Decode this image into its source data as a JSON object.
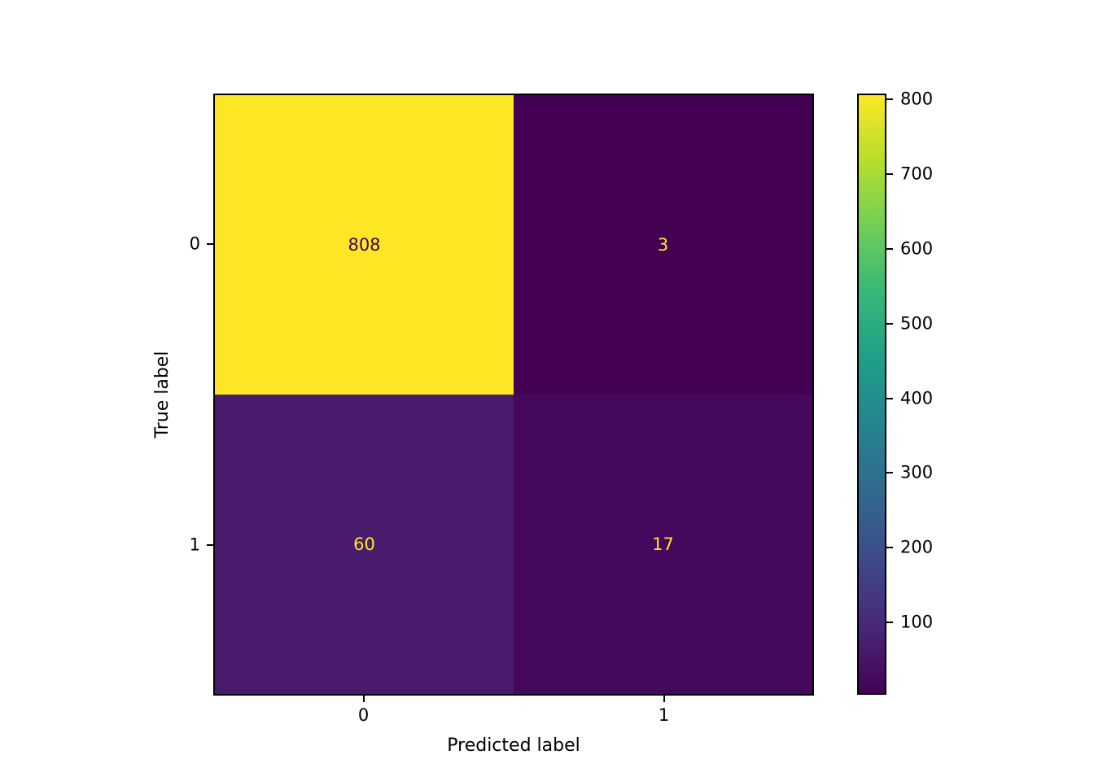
{
  "figure": {
    "background": "#ffffff"
  },
  "chart_data": {
    "type": "heatmap",
    "subtype": "confusion-matrix",
    "colormap": "viridis",
    "xlabel": "Predicted label",
    "ylabel": "True label",
    "x_tick_labels": [
      "0",
      "1"
    ],
    "y_tick_labels": [
      "0",
      "1"
    ],
    "matrix": [
      [
        808,
        3
      ],
      [
        60,
        17
      ]
    ],
    "cell_colors": [
      [
        "#fde725",
        "#440154"
      ],
      [
        "#481b6d",
        "#46085c"
      ]
    ],
    "cell_text_colors": [
      [
        "#440154",
        "#fde725"
      ],
      [
        "#fde725",
        "#fde725"
      ]
    ],
    "colorbar": {
      "vmin": 3,
      "vmax": 808,
      "ticks": [
        100,
        200,
        300,
        400,
        500,
        600,
        700,
        800
      ],
      "gradient_stops": [
        "#440154",
        "#482878",
        "#3e4989",
        "#31688e",
        "#26828e",
        "#1f9e89",
        "#35b779",
        "#6ece58",
        "#b5de2b",
        "#fde725"
      ]
    },
    "legend_position": "right-colorbar",
    "grid": false
  }
}
